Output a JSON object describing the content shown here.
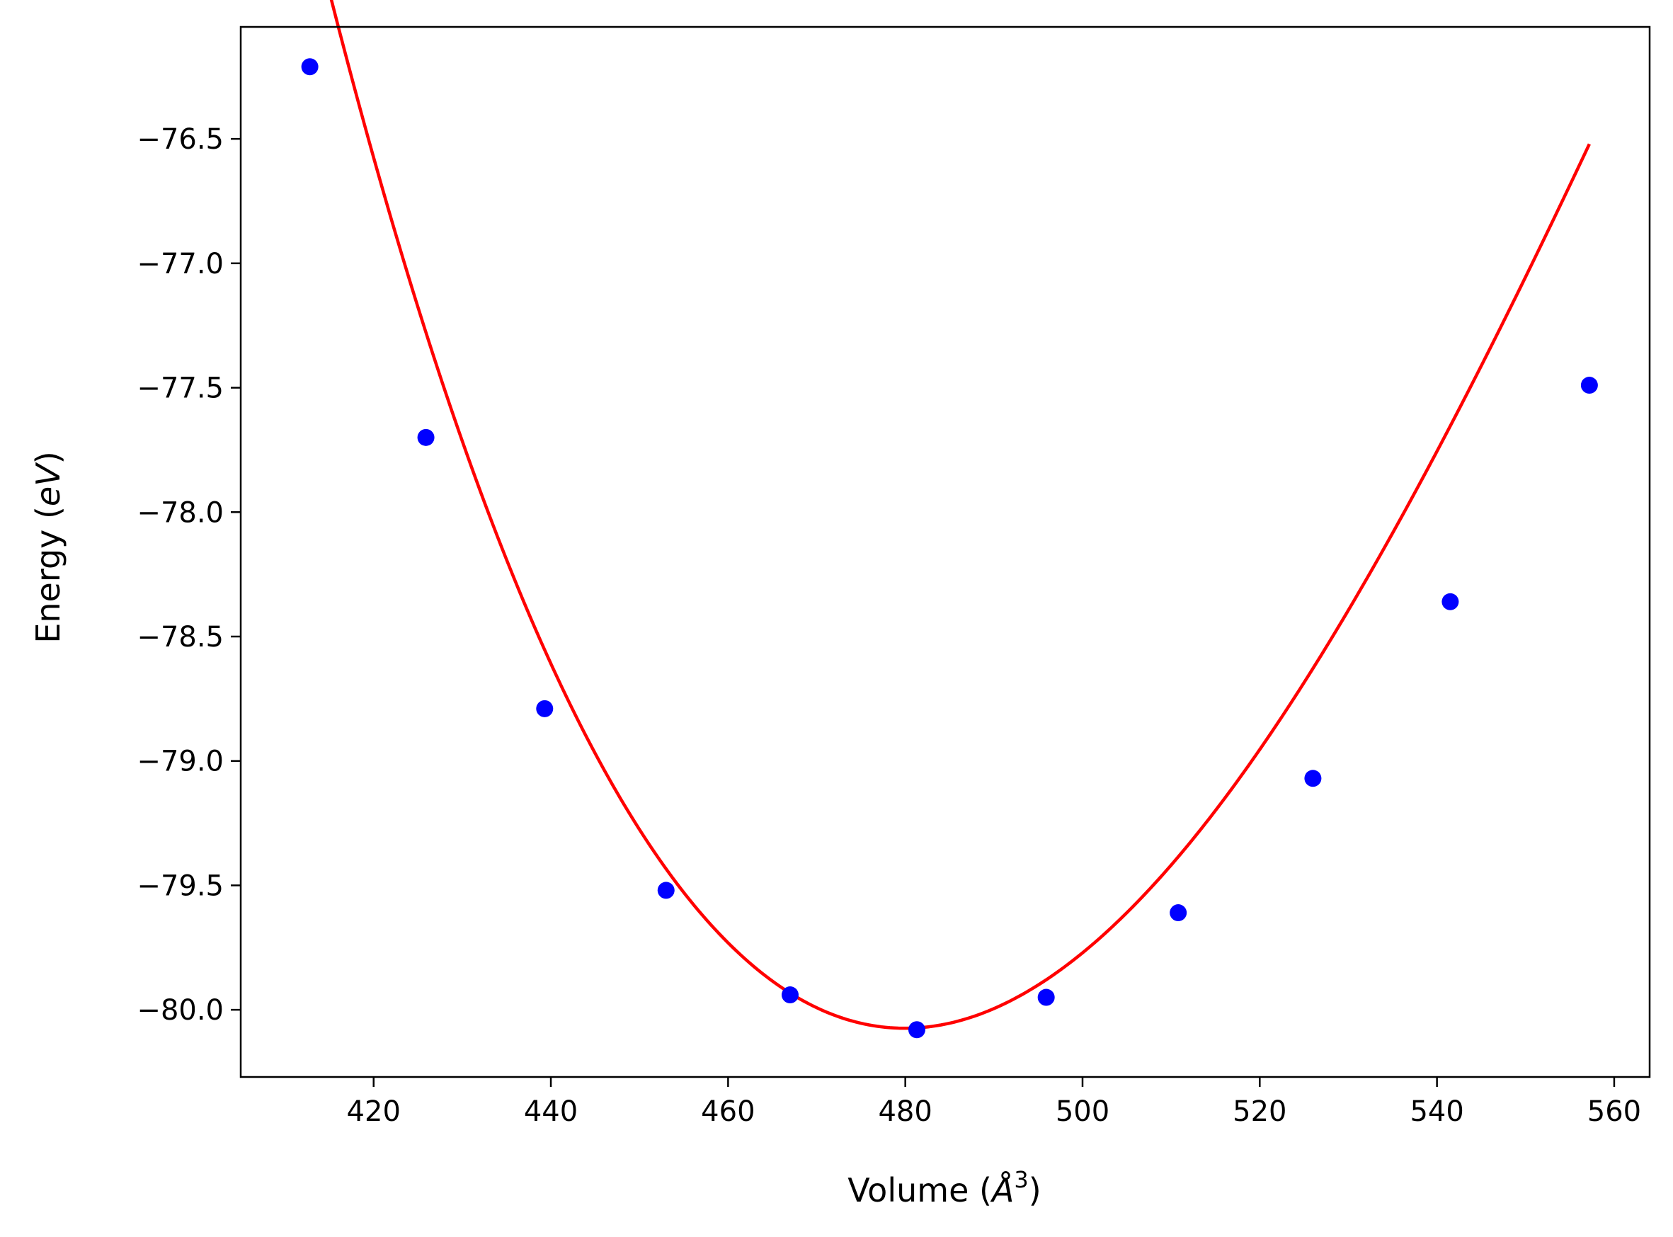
{
  "chart_data": {
    "type": "scatter",
    "title": "",
    "xlabel": "Volume (Å³)",
    "ylabel": "Energy (eV)",
    "xlabel_parts": {
      "prefix": "Volume (",
      "unit": "Å",
      "sup": "3",
      "suffix": ")"
    },
    "ylabel_parts": {
      "prefix": "Energy (",
      "unit": "eV",
      "suffix": ")"
    },
    "xlim": [
      405,
      564
    ],
    "ylim": [
      -80.27,
      -76.05
    ],
    "xticks": [
      420,
      440,
      460,
      480,
      500,
      520,
      540,
      560
    ],
    "yticks": [
      -80.0,
      -79.5,
      -79.0,
      -78.5,
      -78.0,
      -77.5,
      -77.0,
      -76.5
    ],
    "ytick_labels": [
      "−80.0",
      "−79.5",
      "−79.0",
      "−78.5",
      "−78.0",
      "−77.5",
      "−77.0",
      "−76.5"
    ],
    "grid": false,
    "series": [
      {
        "type": "scatter",
        "color": "#0000ff",
        "x": [
          412.8,
          425.9,
          439.3,
          453.0,
          467.0,
          481.3,
          495.9,
          510.8,
          526.0,
          541.5,
          557.2
        ],
        "y": [
          -76.21,
          -77.7,
          -78.79,
          -79.52,
          -79.94,
          -80.08,
          -79.95,
          -79.61,
          -79.07,
          -78.36,
          -77.49
        ]
      },
      {
        "type": "line",
        "color": "#ff0000",
        "fit": "cubic",
        "coefficients": [
          -80.0742,
          0.0001,
          0.000808,
          -2.76e-06
        ],
        "x_center": 480.0,
        "x_range": [
          412.8,
          557.2
        ]
      }
    ]
  }
}
